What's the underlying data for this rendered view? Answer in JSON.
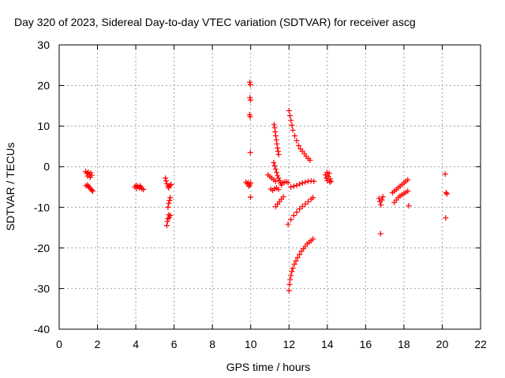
{
  "chart_data": {
    "type": "scatter",
    "title": "Day 320 of 2023, Sidereal Day-to-day VTEC variation (SDTVAR) for receiver ascg",
    "xlabel": "GPS time / hours",
    "ylabel": "SDTVAR / TECUs",
    "xlim": [
      0,
      22
    ],
    "ylim": [
      -40,
      30
    ],
    "xticks": [
      0,
      2,
      4,
      6,
      8,
      10,
      12,
      14,
      16,
      18,
      20,
      22
    ],
    "yticks": [
      -40,
      -30,
      -20,
      -10,
      0,
      10,
      20,
      30
    ],
    "grid": true,
    "marker": "+",
    "color": "#ff0000",
    "series": [
      {
        "name": "SDTVAR",
        "points": [
          [
            1.38,
            -1.2
          ],
          [
            1.45,
            -1.6
          ],
          [
            1.52,
            -1.4
          ],
          [
            1.58,
            -1.9
          ],
          [
            1.65,
            -1.5
          ],
          [
            1.7,
            -2.1
          ],
          [
            1.48,
            -2.3
          ],
          [
            1.62,
            -2.6
          ],
          [
            1.4,
            -4.7
          ],
          [
            1.48,
            -4.5
          ],
          [
            1.55,
            -5.0
          ],
          [
            1.62,
            -5.3
          ],
          [
            1.68,
            -5.6
          ],
          [
            1.75,
            -6.0
          ],
          [
            1.52,
            -4.8
          ],
          [
            1.72,
            -5.9
          ],
          [
            3.95,
            -5.0
          ],
          [
            4.02,
            -4.6
          ],
          [
            4.1,
            -4.8
          ],
          [
            4.18,
            -5.2
          ],
          [
            4.25,
            -5.0
          ],
          [
            4.32,
            -5.4
          ],
          [
            4.4,
            -5.6
          ],
          [
            4.05,
            -5.3
          ],
          [
            4.22,
            -4.7
          ],
          [
            5.55,
            -2.8
          ],
          [
            5.58,
            -3.5
          ],
          [
            5.62,
            -4.2
          ],
          [
            5.68,
            -4.8
          ],
          [
            5.72,
            -5.2
          ],
          [
            5.78,
            -4.6
          ],
          [
            5.85,
            -4.4
          ],
          [
            5.62,
            -14.5
          ],
          [
            5.65,
            -13.5
          ],
          [
            5.68,
            -12.8
          ],
          [
            5.72,
            -11.8
          ],
          [
            5.75,
            -12.5
          ],
          [
            5.8,
            -12.0
          ],
          [
            5.68,
            -10.0
          ],
          [
            5.72,
            -9.0
          ],
          [
            5.76,
            -8.3
          ],
          [
            5.8,
            -7.6
          ],
          [
            9.75,
            -3.8
          ],
          [
            9.82,
            -4.2
          ],
          [
            9.88,
            -3.9
          ],
          [
            9.95,
            -4.5
          ],
          [
            10.0,
            -4.0
          ],
          [
            9.9,
            -4.8
          ],
          [
            9.95,
            20.8
          ],
          [
            9.98,
            20.2
          ],
          [
            9.96,
            17.0
          ],
          [
            9.99,
            16.4
          ],
          [
            9.94,
            12.8
          ],
          [
            9.97,
            12.3
          ],
          [
            9.98,
            3.5
          ],
          [
            9.99,
            -7.5
          ],
          [
            10.9,
            -2.0
          ],
          [
            11.0,
            -2.4
          ],
          [
            11.1,
            -2.8
          ],
          [
            11.2,
            -3.2
          ],
          [
            11.3,
            -3.6
          ],
          [
            11.05,
            -5.5
          ],
          [
            11.15,
            -5.8
          ],
          [
            11.25,
            -5.4
          ],
          [
            11.35,
            -5.2
          ],
          [
            11.45,
            -5.6
          ],
          [
            11.22,
            10.4
          ],
          [
            11.25,
            9.6
          ],
          [
            11.28,
            8.6
          ],
          [
            11.31,
            7.6
          ],
          [
            11.34,
            6.6
          ],
          [
            11.37,
            5.6
          ],
          [
            11.4,
            4.6
          ],
          [
            11.43,
            3.8
          ],
          [
            11.46,
            3.0
          ],
          [
            11.2,
            1.0
          ],
          [
            11.25,
            0.2
          ],
          [
            11.3,
            -0.6
          ],
          [
            11.35,
            -1.4
          ],
          [
            11.4,
            -2.2
          ],
          [
            11.45,
            -2.8
          ],
          [
            11.5,
            -3.4
          ],
          [
            11.55,
            -4.0
          ],
          [
            11.6,
            -4.5
          ],
          [
            11.3,
            -9.8
          ],
          [
            11.4,
            -9.2
          ],
          [
            11.5,
            -8.6
          ],
          [
            11.6,
            -8.0
          ],
          [
            11.7,
            -7.4
          ],
          [
            11.65,
            -4.0
          ],
          [
            11.75,
            -3.8
          ],
          [
            11.85,
            -3.7
          ],
          [
            11.95,
            -3.9
          ],
          [
            12.0,
            13.8
          ],
          [
            12.05,
            12.6
          ],
          [
            12.1,
            11.4
          ],
          [
            12.15,
            10.2
          ],
          [
            12.2,
            9.0
          ],
          [
            12.3,
            7.6
          ],
          [
            12.4,
            6.4
          ],
          [
            12.5,
            5.2
          ],
          [
            12.6,
            4.4
          ],
          [
            12.7,
            3.8
          ],
          [
            12.8,
            3.2
          ],
          [
            12.9,
            2.6
          ],
          [
            13.0,
            2.0
          ],
          [
            13.1,
            1.6
          ],
          [
            12.0,
            -30.5
          ],
          [
            12.03,
            -29.0
          ],
          [
            12.06,
            -27.8
          ],
          [
            12.1,
            -26.8
          ],
          [
            12.15,
            -25.8
          ],
          [
            12.2,
            -25.0
          ],
          [
            12.28,
            -24.0
          ],
          [
            12.36,
            -23.2
          ],
          [
            12.45,
            -22.4
          ],
          [
            12.55,
            -21.6
          ],
          [
            12.65,
            -20.8
          ],
          [
            12.75,
            -20.2
          ],
          [
            12.85,
            -19.6
          ],
          [
            12.95,
            -19.0
          ],
          [
            13.05,
            -18.6
          ],
          [
            13.15,
            -18.2
          ],
          [
            13.25,
            -17.8
          ],
          [
            11.95,
            -14.2
          ],
          [
            12.1,
            -13.0
          ],
          [
            12.25,
            -12.0
          ],
          [
            12.4,
            -11.2
          ],
          [
            12.55,
            -10.4
          ],
          [
            12.7,
            -9.8
          ],
          [
            12.85,
            -9.2
          ],
          [
            13.0,
            -8.6
          ],
          [
            13.15,
            -8.0
          ],
          [
            13.25,
            -7.6
          ],
          [
            12.1,
            -5.0
          ],
          [
            12.25,
            -4.8
          ],
          [
            12.4,
            -4.6
          ],
          [
            12.55,
            -4.3
          ],
          [
            12.7,
            -4.0
          ],
          [
            12.85,
            -3.8
          ],
          [
            13.0,
            -3.6
          ],
          [
            13.15,
            -3.5
          ],
          [
            13.3,
            -3.6
          ],
          [
            13.9,
            -2.0
          ],
          [
            13.95,
            -2.8
          ],
          [
            14.0,
            -3.4
          ],
          [
            14.05,
            -2.4
          ],
          [
            14.1,
            -1.6
          ],
          [
            14.15,
            -3.0
          ],
          [
            14.2,
            -3.6
          ],
          [
            13.98,
            -1.4
          ],
          [
            14.12,
            -3.8
          ],
          [
            16.7,
            -7.8
          ],
          [
            16.75,
            -8.6
          ],
          [
            16.8,
            -9.4
          ],
          [
            16.85,
            -8.2
          ],
          [
            16.9,
            -7.4
          ],
          [
            16.78,
            -16.5
          ],
          [
            17.4,
            -6.4
          ],
          [
            17.5,
            -6.0
          ],
          [
            17.6,
            -5.6
          ],
          [
            17.7,
            -5.2
          ],
          [
            17.8,
            -4.8
          ],
          [
            17.9,
            -4.4
          ],
          [
            18.0,
            -4.0
          ],
          [
            18.1,
            -3.6
          ],
          [
            18.2,
            -3.2
          ],
          [
            17.5,
            -8.8
          ],
          [
            17.6,
            -8.2
          ],
          [
            17.7,
            -7.6
          ],
          [
            17.8,
            -7.2
          ],
          [
            17.9,
            -6.9
          ],
          [
            18.0,
            -6.6
          ],
          [
            18.1,
            -6.3
          ],
          [
            18.2,
            -6.0
          ],
          [
            18.25,
            -9.6
          ],
          [
            20.15,
            -1.8
          ],
          [
            20.2,
            -6.4
          ],
          [
            20.25,
            -6.7
          ],
          [
            20.18,
            -12.6
          ]
        ]
      }
    ]
  }
}
